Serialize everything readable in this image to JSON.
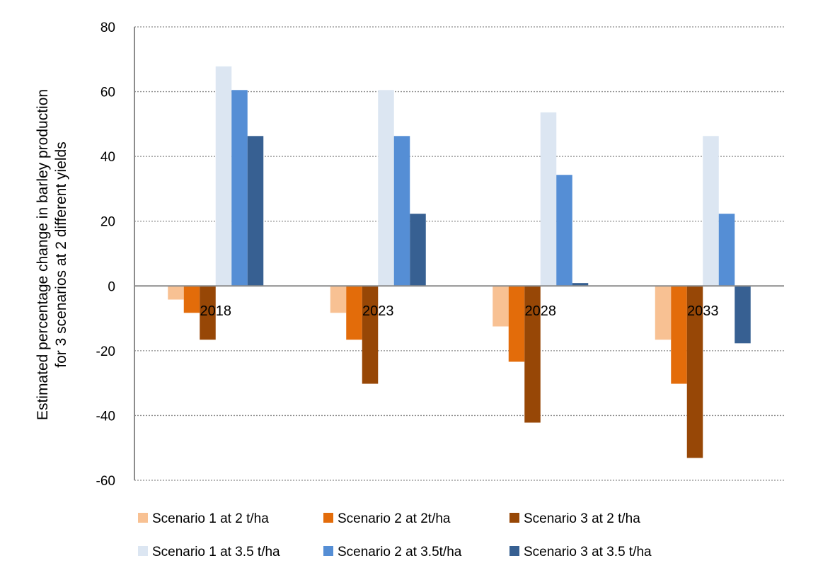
{
  "chart_data": {
    "type": "bar",
    "title": "",
    "xlabel": "",
    "ylabel_lines": [
      "Estimated percentage change in barley production",
      "for 3 scenarios at 2 different yields"
    ],
    "categories": [
      "2018",
      "2023",
      "2028",
      "2033"
    ],
    "ylim": [
      -60,
      80
    ],
    "yticks": [
      80,
      60,
      40,
      20,
      0,
      -20,
      -40,
      -60
    ],
    "grid": true,
    "legend_position": "bottom",
    "series": [
      {
        "name": "Scenario 1 at 2 t/ha",
        "color": "#F8C193",
        "values": [
          -4.2,
          -8.3,
          -12.5,
          -16.6
        ]
      },
      {
        "name": "Scenario 2 at 2t/ha",
        "color": "#E36C0A",
        "values": [
          -8.3,
          -16.6,
          -23.4,
          -30.2
        ]
      },
      {
        "name": "Scenario 3 at 2 t/ha",
        "color": "#974706",
        "values": [
          -16.6,
          -30.2,
          -42.2,
          -53.1
        ]
      },
      {
        "name": "Scenario 1 at 3.5 t/ha",
        "color": "#DCE6F2",
        "values": [
          67.8,
          60.5,
          53.6,
          46.3
        ]
      },
      {
        "name": "Scenario 2 at 3.5t/ha",
        "color": "#558ED5",
        "values": [
          60.5,
          46.3,
          34.3,
          22.3
        ]
      },
      {
        "name": "Scenario 3 at 3.5 t/ha",
        "color": "#376092",
        "values": [
          46.3,
          22.3,
          0.9,
          -17.7
        ]
      }
    ]
  }
}
